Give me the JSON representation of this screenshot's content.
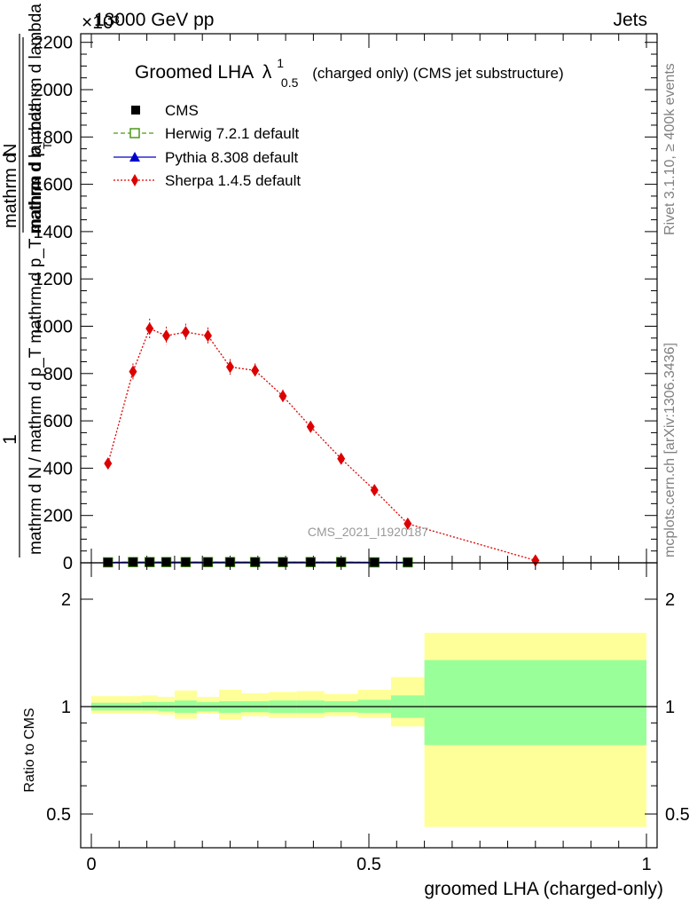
{
  "header": {
    "left": "13000 GeV pp",
    "right": "Jets",
    "exponent": "×10³"
  },
  "side_labels": {
    "rivet": "Rivet 3.1.10, ≥ 400k events",
    "mcplots": "mcplots.cern.ch [arXiv:1306.3436]"
  },
  "watermark": "CMS_2021_I1920187",
  "chart_data": [
    {
      "type": "scatter",
      "title_main": "Groomed LHA",
      "title_lambda": "λ",
      "title_sup": "1",
      "title_sub": "0.5",
      "title_rest": "(charged only) (CMS jet substructure)",
      "ylabel_num": "1",
      "ylabel_den": "mathrm d N / mathrm d p_T mathrm d p_T mathrm d lambda",
      "ylabel_top": "mathrm d",
      "ylabel_top2": "N",
      "ylabel_top3": "mathrm d p",
      "ylabel_top4": "T",
      "ylabel_top5": "mathrm d lambda",
      "ylim": [
        0,
        2250
      ],
      "yticks": [
        0,
        200,
        400,
        600,
        800,
        1000,
        1200,
        1400,
        1600,
        1800,
        2000,
        2200
      ],
      "ytick_labels": [
        "0",
        "200",
        "400",
        "600",
        "800",
        "1000",
        "1200",
        "1400",
        "1600",
        "1800",
        "2000",
        "2200"
      ],
      "xlim": [
        0,
        1
      ],
      "legend": [
        "CMS",
        "Herwig 7.2.1 default",
        "Pythia 8.308 default",
        "Sherpa 1.4.5 default"
      ],
      "series": [
        {
          "name": "CMS",
          "color": "#000000",
          "x": [
            0.03,
            0.075,
            0.105,
            0.135,
            0.17,
            0.21,
            0.25,
            0.295,
            0.345,
            0.395,
            0.45,
            0.51,
            0.57
          ],
          "y": [
            2,
            3,
            3,
            3,
            3,
            3,
            3,
            3,
            3,
            3,
            3,
            2,
            2
          ]
        },
        {
          "name": "Herwig 7.2.1 default",
          "color": "#4a9a1a",
          "x": [
            0.03,
            0.075,
            0.105,
            0.135,
            0.17,
            0.21,
            0.25,
            0.295,
            0.345,
            0.395,
            0.45,
            0.51,
            0.57
          ],
          "y": [
            2,
            3,
            3,
            3,
            3,
            3,
            3,
            3,
            3,
            3,
            3,
            2,
            2
          ]
        },
        {
          "name": "Pythia 8.308 default",
          "color": "#0000cc",
          "x": [
            0.03,
            0.075,
            0.105,
            0.135,
            0.17,
            0.21,
            0.25,
            0.295,
            0.345,
            0.395,
            0.45,
            0.51,
            0.57
          ],
          "y": [
            2,
            3,
            3,
            3,
            3,
            3,
            3,
            3,
            3,
            3,
            3,
            2,
            2
          ]
        },
        {
          "name": "Sherpa 1.4.5 default",
          "color": "#dd0000",
          "x": [
            0.03,
            0.075,
            0.105,
            0.135,
            0.17,
            0.21,
            0.25,
            0.295,
            0.345,
            0.395,
            0.45,
            0.51,
            0.57,
            0.8
          ],
          "y": [
            420,
            808,
            990,
            960,
            975,
            960,
            828,
            813,
            705,
            575,
            440,
            307,
            165,
            10
          ],
          "yerr": [
            18,
            35,
            42,
            38,
            36,
            35,
            33,
            30,
            27,
            24,
            19,
            14,
            10,
            3
          ]
        }
      ]
    },
    {
      "type": "area",
      "ylabel": "Ratio to CMS",
      "xlabel": "groomed LHA (charged-only)",
      "ylim": [
        0.4,
        2.3
      ],
      "yticks": [
        0.5,
        1,
        2
      ],
      "ytick_labels": [
        "0.5",
        "1",
        "2"
      ],
      "xlim": [
        0,
        1
      ],
      "xticks": [
        0,
        0.5,
        1
      ],
      "xtick_labels": [
        "0",
        "0.5",
        "1"
      ],
      "bands": [
        {
          "x0": 0.0,
          "x1": 0.06,
          "g_lo": 0.975,
          "g_hi": 1.025,
          "y_lo": 0.955,
          "y_hi": 1.07
        },
        {
          "x0": 0.06,
          "x1": 0.09,
          "g_lo": 0.975,
          "g_hi": 1.025,
          "y_lo": 0.955,
          "y_hi": 1.07
        },
        {
          "x0": 0.09,
          "x1": 0.12,
          "g_lo": 0.975,
          "g_hi": 1.03,
          "y_lo": 0.955,
          "y_hi": 1.075
        },
        {
          "x0": 0.12,
          "x1": 0.15,
          "g_lo": 0.97,
          "g_hi": 1.03,
          "y_lo": 0.95,
          "y_hi": 1.065
        },
        {
          "x0": 0.15,
          "x1": 0.19,
          "g_lo": 0.96,
          "g_hi": 1.04,
          "y_lo": 0.925,
          "y_hi": 1.11
        },
        {
          "x0": 0.19,
          "x1": 0.23,
          "g_lo": 0.97,
          "g_hi": 1.03,
          "y_lo": 0.955,
          "y_hi": 1.065
        },
        {
          "x0": 0.23,
          "x1": 0.27,
          "g_lo": 0.96,
          "g_hi": 1.035,
          "y_lo": 0.92,
          "y_hi": 1.115
        },
        {
          "x0": 0.27,
          "x1": 0.32,
          "g_lo": 0.965,
          "g_hi": 1.035,
          "y_lo": 0.94,
          "y_hi": 1.09
        },
        {
          "x0": 0.32,
          "x1": 0.37,
          "g_lo": 0.96,
          "g_hi": 1.04,
          "y_lo": 0.93,
          "y_hi": 1.1
        },
        {
          "x0": 0.37,
          "x1": 0.42,
          "g_lo": 0.96,
          "g_hi": 1.04,
          "y_lo": 0.93,
          "y_hi": 1.105
        },
        {
          "x0": 0.42,
          "x1": 0.48,
          "g_lo": 0.965,
          "g_hi": 1.035,
          "y_lo": 0.94,
          "y_hi": 1.085
        },
        {
          "x0": 0.48,
          "x1": 0.54,
          "g_lo": 0.96,
          "g_hi": 1.045,
          "y_lo": 0.93,
          "y_hi": 1.115
        },
        {
          "x0": 0.54,
          "x1": 0.6,
          "g_lo": 0.93,
          "g_hi": 1.075,
          "y_lo": 0.88,
          "y_hi": 1.21
        },
        {
          "x0": 0.6,
          "x1": 1.0,
          "g_lo": 0.78,
          "g_hi": 1.35,
          "y_lo": 0.46,
          "y_hi": 1.61
        }
      ]
    }
  ]
}
